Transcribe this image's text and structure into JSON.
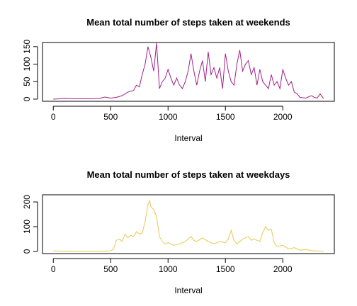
{
  "chart_data": [
    {
      "type": "line",
      "title": "Mean total number of steps taken at weekends",
      "xlabel": "Interval",
      "x": [
        0,
        100,
        200,
        300,
        400,
        450,
        500,
        550,
        600,
        650,
        700,
        725,
        750,
        775,
        800,
        825,
        850,
        875,
        900,
        925,
        950,
        975,
        1000,
        1025,
        1050,
        1075,
        1100,
        1125,
        1150,
        1175,
        1200,
        1225,
        1250,
        1275,
        1300,
        1325,
        1350,
        1375,
        1400,
        1425,
        1450,
        1475,
        1500,
        1525,
        1550,
        1575,
        1600,
        1625,
        1650,
        1675,
        1700,
        1725,
        1750,
        1775,
        1800,
        1825,
        1850,
        1875,
        1900,
        1925,
        1950,
        1975,
        2000,
        2025,
        2050,
        2075,
        2100,
        2125,
        2150,
        2200,
        2250,
        2275,
        2300,
        2325,
        2355
      ],
      "series": [
        {
          "name": "weekends",
          "color": "#a0208a",
          "values": [
            0,
            2,
            1,
            1,
            2,
            6,
            3,
            5,
            10,
            20,
            25,
            40,
            35,
            70,
            100,
            150,
            120,
            80,
            160,
            30,
            50,
            60,
            85,
            60,
            40,
            60,
            40,
            30,
            50,
            80,
            130,
            80,
            40,
            80,
            110,
            50,
            135,
            70,
            90,
            60,
            90,
            30,
            130,
            80,
            50,
            40,
            100,
            140,
            80,
            100,
            110,
            70,
            90,
            40,
            85,
            50,
            40,
            30,
            70,
            40,
            50,
            30,
            85,
            60,
            40,
            50,
            20,
            15,
            5,
            3,
            10,
            5,
            3,
            15,
            2
          ]
        }
      ],
      "xlim": [
        -94.2,
        2449.2
      ],
      "xticks": [
        0,
        500,
        1000,
        1500,
        2000
      ],
      "ylim": [
        -6.2,
        161.8
      ],
      "yticks": [
        0,
        50,
        100,
        150
      ]
    },
    {
      "type": "line",
      "title": "Mean total number of steps taken at weekdays",
      "xlabel": "Interval",
      "x": [
        0,
        100,
        200,
        300,
        400,
        500,
        525,
        550,
        575,
        600,
        625,
        650,
        675,
        700,
        725,
        750,
        775,
        800,
        825,
        840,
        850,
        875,
        900,
        925,
        950,
        975,
        1000,
        1050,
        1100,
        1150,
        1200,
        1225,
        1250,
        1300,
        1350,
        1400,
        1450,
        1500,
        1525,
        1550,
        1575,
        1600,
        1650,
        1700,
        1725,
        1750,
        1800,
        1825,
        1850,
        1875,
        1900,
        1925,
        1950,
        2000,
        2050,
        2100,
        2150,
        2200,
        2250,
        2300,
        2355
      ],
      "series": [
        {
          "name": "weekdays",
          "color": "#e8c850",
          "values": [
            2,
            1,
            0,
            0,
            1,
            2,
            10,
            45,
            50,
            40,
            70,
            55,
            65,
            60,
            80,
            70,
            75,
            120,
            190,
            205,
            180,
            170,
            140,
            60,
            40,
            30,
            35,
            25,
            30,
            40,
            60,
            45,
            40,
            55,
            40,
            30,
            40,
            35,
            50,
            85,
            45,
            30,
            50,
            60,
            45,
            50,
            40,
            75,
            100,
            85,
            90,
            35,
            20,
            25,
            10,
            15,
            5,
            8,
            3,
            2,
            1
          ]
        }
      ],
      "xlim": [
        -94.2,
        2449.2
      ],
      "xticks": [
        0,
        500,
        1000,
        1500,
        2000
      ],
      "ylim": [
        -8.8,
        228.8
      ],
      "yticks": [
        0,
        100,
        200
      ]
    }
  ]
}
